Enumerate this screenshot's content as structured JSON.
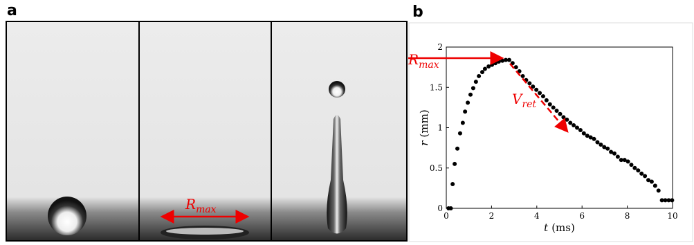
{
  "panel_a": {
    "label": "a",
    "annotation": {
      "base": "R",
      "subscript": "max"
    }
  },
  "chart_data": {
    "type": "scatter",
    "panel_label": "b",
    "xlabel": {
      "symbol": "t",
      "unit": "(ms)"
    },
    "ylabel": {
      "symbol": "r",
      "unit": "(mm)"
    },
    "annotations": [
      {
        "base": "R",
        "subscript": "max"
      },
      {
        "base": "V",
        "subscript": "ret"
      }
    ],
    "color": "#000000",
    "xlim": [
      0,
      10
    ],
    "ylim": [
      0,
      2
    ],
    "xticks": [
      0,
      2,
      4,
      6,
      8,
      10
    ],
    "yticks": [
      0,
      0.5,
      1,
      1.5,
      2
    ],
    "x": [
      0.1,
      0.2,
      0.28,
      0.37,
      0.49,
      0.61,
      0.73,
      0.83,
      0.95,
      1.07,
      1.19,
      1.31,
      1.44,
      1.59,
      1.71,
      1.87,
      2.02,
      2.17,
      2.32,
      2.48,
      2.63,
      2.78,
      2.93,
      3.08,
      3.23,
      3.38,
      3.53,
      3.68,
      3.83,
      3.98,
      4.13,
      4.28,
      4.43,
      4.58,
      4.73,
      4.88,
      5.03,
      5.18,
      5.33,
      5.48,
      5.63,
      5.78,
      5.93,
      6.08,
      6.23,
      6.38,
      6.53,
      6.68,
      6.83,
      6.98,
      7.13,
      7.28,
      7.43,
      7.58,
      7.73,
      7.88,
      8.03,
      8.18,
      8.33,
      8.48,
      8.63,
      8.78,
      8.93,
      9.08,
      9.23,
      9.38,
      9.53,
      9.68,
      9.83,
      9.98
    ],
    "values": [
      0,
      0,
      0.3,
      0.55,
      0.74,
      0.93,
      1.06,
      1.2,
      1.31,
      1.41,
      1.49,
      1.57,
      1.64,
      1.69,
      1.73,
      1.76,
      1.78,
      1.8,
      1.82,
      1.83,
      1.84,
      1.84,
      1.8,
      1.75,
      1.7,
      1.64,
      1.59,
      1.55,
      1.51,
      1.47,
      1.43,
      1.39,
      1.34,
      1.29,
      1.25,
      1.21,
      1.17,
      1.13,
      1.1,
      1.06,
      1.03,
      1.0,
      0.97,
      0.93,
      0.9,
      0.88,
      0.86,
      0.82,
      0.79,
      0.76,
      0.74,
      0.7,
      0.68,
      0.64,
      0.6,
      0.6,
      0.58,
      0.54,
      0.5,
      0.47,
      0.43,
      0.4,
      0.35,
      0.33,
      0.28,
      0.22,
      0.1,
      0.1,
      0.1,
      0.1
    ]
  }
}
